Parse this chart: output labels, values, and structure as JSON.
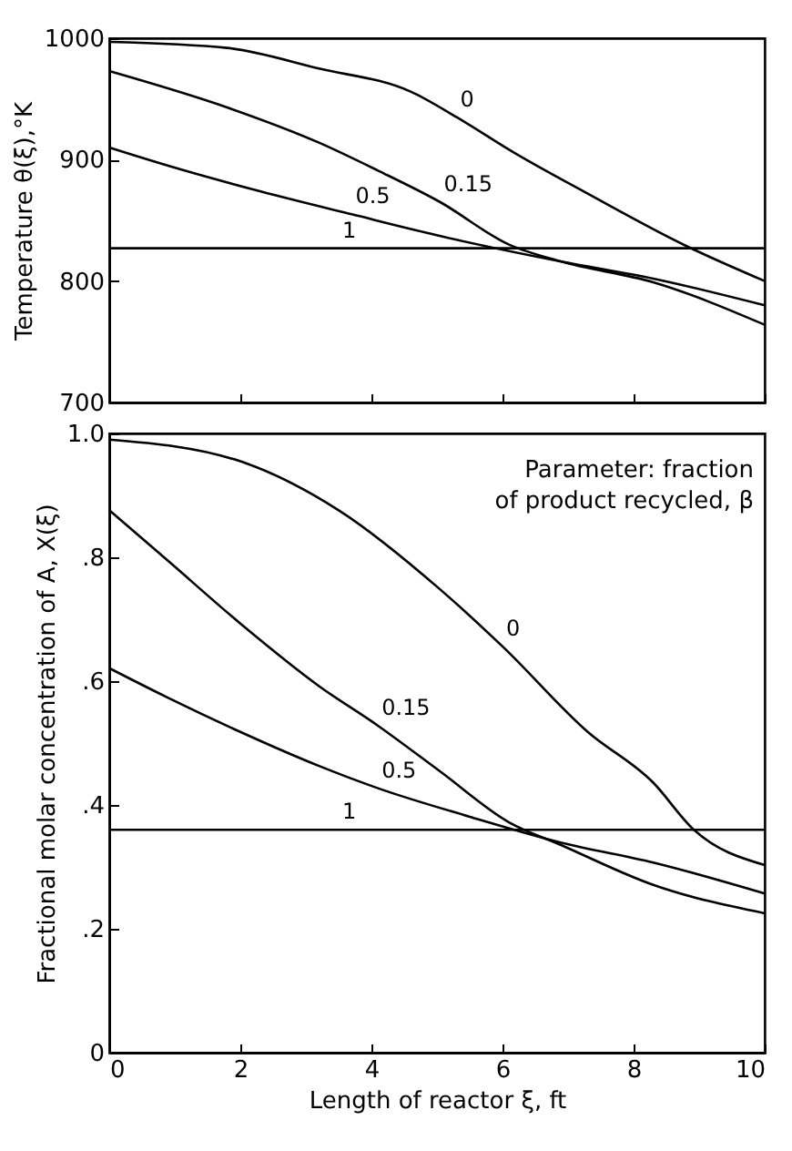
{
  "chart_data": [
    {
      "type": "line",
      "ylabel": "Temperature  θ(ξ),°K",
      "xlim": [
        0,
        10
      ],
      "xticks": [
        0,
        2,
        4,
        6,
        8,
        10
      ],
      "ylim": [
        700,
        1000
      ],
      "yticks": [
        700,
        800,
        900,
        1000
      ],
      "tick_labels": "y",
      "grid": false,
      "legend": false,
      "series": [
        {
          "name": "0",
          "color": "#000000",
          "x": [
            0,
            1.8,
            3.2,
            4.6,
            5.3,
            6.2,
            7.3,
            8.8,
            10
          ],
          "values": [
            997,
            992,
            975,
            956,
            935,
            905,
            872,
            829,
            800
          ]
        },
        {
          "name": "0.15",
          "color": "#000000",
          "x": [
            0,
            1.8,
            3.2,
            4.1,
            5.05,
            6.1,
            6.9,
            8.3,
            10
          ],
          "values": [
            973,
            943,
            914,
            891,
            865,
            830,
            816,
            799,
            764
          ]
        },
        {
          "name": "0.5",
          "color": "#000000",
          "x": [
            0,
            0.9,
            2.3,
            3.7,
            5.3,
            6.9,
            8.3,
            10
          ],
          "values": [
            910,
            895,
            874,
            855,
            834,
            816,
            802,
            780
          ]
        },
        {
          "name": "1",
          "color": "#000000",
          "x": [
            0,
            10
          ],
          "values": [
            827,
            827
          ]
        }
      ]
    },
    {
      "type": "line",
      "xlabel": "Length of reactor ξ, ft",
      "ylabel": "Fractional molar concentration of A, X(ξ)",
      "xlim": [
        0,
        10
      ],
      "xticks": [
        0,
        2,
        4,
        6,
        8,
        10
      ],
      "ylim": [
        0,
        1.0
      ],
      "yticks": [
        0,
        {
          "value": 0.2,
          "label": ".2"
        },
        {
          "value": 0.4,
          "label": ".4"
        },
        {
          "value": 0.6,
          "label": ".6"
        },
        {
          "value": 0.8,
          "label": ".8"
        },
        {
          "value": 1.0,
          "label": "1.0"
        }
      ],
      "grid": false,
      "legend": false,
      "annotations": [
        "Parameter: fraction of product recycled, β"
      ],
      "series": [
        {
          "name": "0",
          "color": "#000000",
          "x": [
            0,
            2,
            3.5,
            5.05,
            6,
            7.3,
            8.3,
            8.9,
            10
          ],
          "values": [
            0.99,
            0.955,
            0.876,
            0.748,
            0.656,
            0.518,
            0.436,
            0.362,
            0.303
          ]
        },
        {
          "name": "0.15",
          "color": "#000000",
          "x": [
            0,
            0.9,
            2,
            3.2,
            4.1,
            5.05,
            6.1,
            6.9,
            8.3,
            10
          ],
          "values": [
            0.876,
            0.794,
            0.693,
            0.592,
            0.528,
            0.454,
            0.372,
            0.335,
            0.271,
            0.225
          ]
        },
        {
          "name": "0.5",
          "color": "#000000",
          "x": [
            0,
            0.9,
            2,
            3.2,
            4.1,
            5.5,
            6.9,
            8.3,
            10
          ],
          "values": [
            0.621,
            0.573,
            0.518,
            0.463,
            0.427,
            0.381,
            0.339,
            0.307,
            0.257
          ]
        },
        {
          "name": "1",
          "color": "#000000",
          "x": [
            0,
            10
          ],
          "values": [
            0.36,
            0.36
          ]
        }
      ]
    }
  ]
}
